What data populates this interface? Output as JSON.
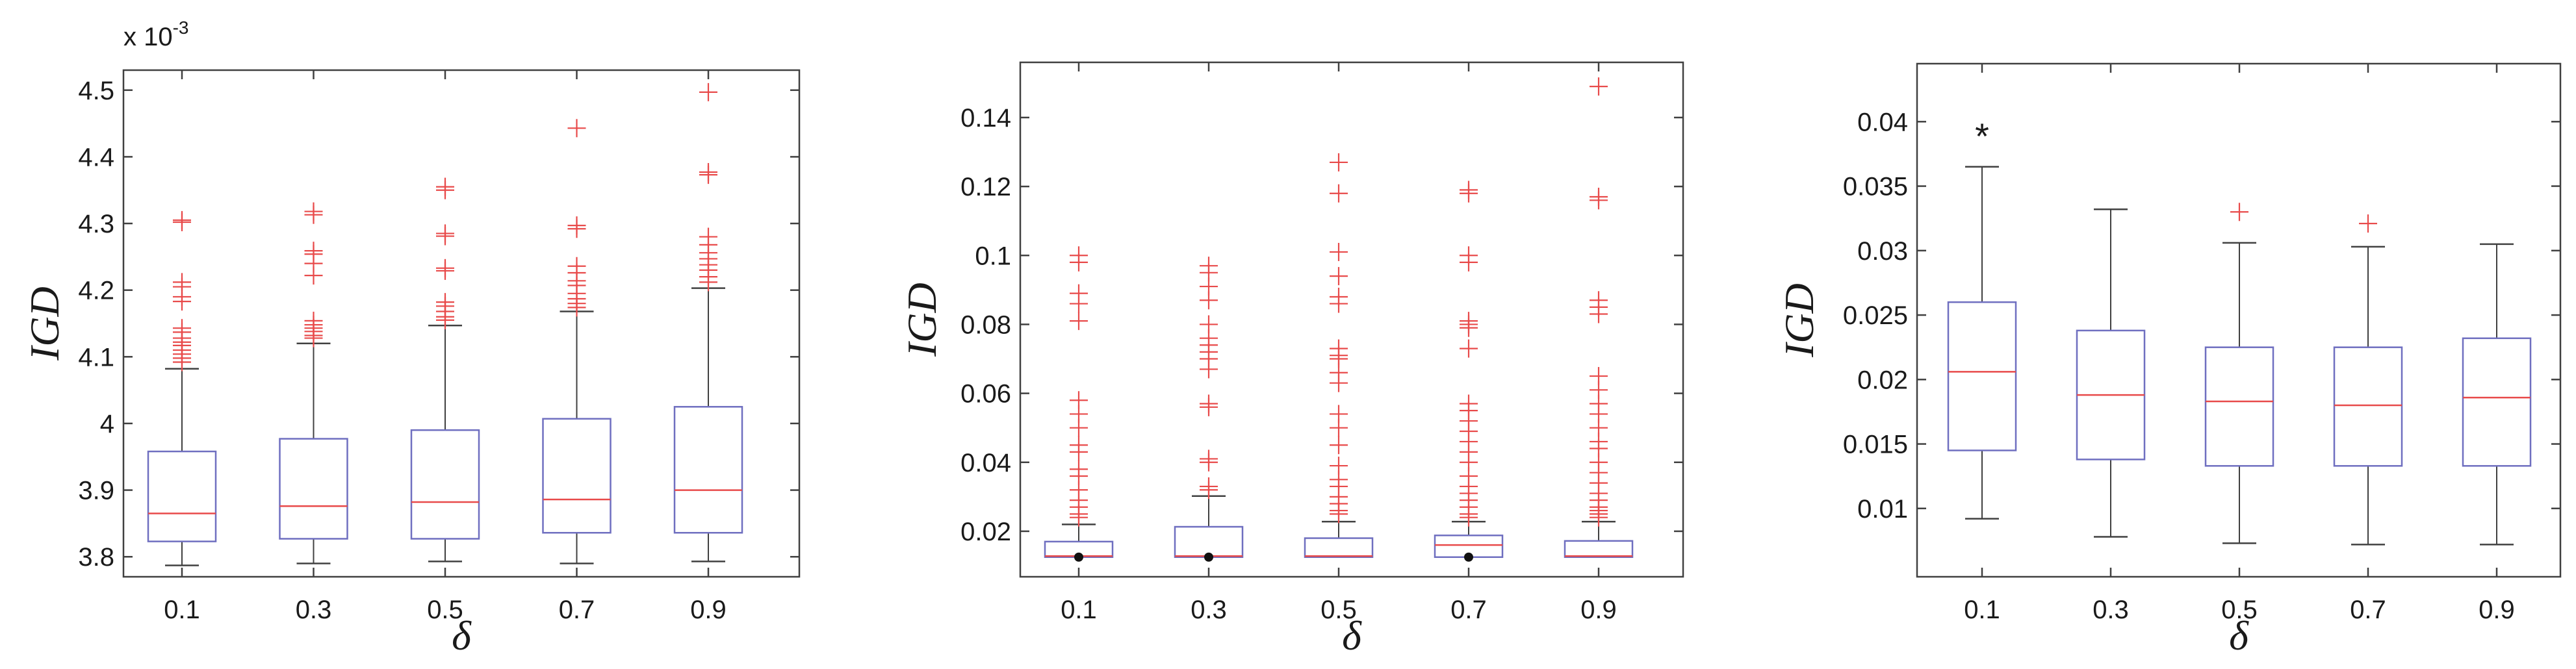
{
  "colors": {
    "box": "#6f6fc0",
    "median": "#e84a4a",
    "whisker": "#404040",
    "outlier": "#e84a4a",
    "dot": "#111111",
    "star": "#1a1a1a"
  },
  "chart_data": [
    {
      "type": "box",
      "xlabel": "δ",
      "ylabel": "IGD",
      "scale_label": "x 10",
      "scale_exponent": "-3",
      "categories": [
        "0.1",
        "0.3",
        "0.5",
        "0.7",
        "0.9"
      ],
      "ylim": [
        3.77,
        4.53
      ],
      "yticks": [
        3.8,
        3.9,
        4.0,
        4.1,
        4.2,
        4.3,
        4.4,
        4.5
      ],
      "ytick_labels": [
        "3.8",
        "3.9",
        "4",
        "4.1",
        "4.2",
        "4.3",
        "4.4",
        "4.5"
      ],
      "boxes": [
        {
          "whisker_low": 3.787,
          "q1": 3.823,
          "median": 3.865,
          "q3": 3.958,
          "whisker_high": 4.082,
          "outliers": [
            4.305,
            4.302,
            4.212,
            4.205,
            4.19,
            4.183,
            4.143,
            4.137,
            4.128,
            4.122,
            4.117,
            4.11,
            4.104,
            4.098,
            4.092
          ]
        },
        {
          "whisker_low": 3.79,
          "q1": 3.827,
          "median": 3.876,
          "q3": 3.977,
          "whisker_high": 4.12,
          "outliers": [
            4.318,
            4.313,
            4.259,
            4.254,
            4.24,
            4.222,
            4.154,
            4.148,
            4.143,
            4.138,
            4.132,
            4.128
          ]
        },
        {
          "whisker_low": 3.793,
          "q1": 3.827,
          "median": 3.882,
          "q3": 3.99,
          "whisker_high": 4.147,
          "outliers": [
            4.355,
            4.35,
            4.285,
            4.281,
            4.233,
            4.229,
            4.182,
            4.176,
            4.168,
            4.16,
            4.155
          ]
        },
        {
          "whisker_low": 3.79,
          "q1": 3.836,
          "median": 3.886,
          "q3": 4.007,
          "whisker_high": 4.168,
          "outliers": [
            4.443,
            4.297,
            4.292,
            4.236,
            4.226,
            4.214,
            4.207,
            4.195,
            4.187,
            4.18,
            4.174
          ]
        },
        {
          "whisker_low": 3.793,
          "q1": 3.836,
          "median": 3.9,
          "q3": 4.025,
          "whisker_high": 4.203,
          "outliers": [
            4.497,
            4.377,
            4.373,
            4.28,
            4.268,
            4.256,
            4.247,
            4.238,
            4.23,
            4.22,
            4.212
          ]
        }
      ]
    },
    {
      "type": "box",
      "xlabel": "δ",
      "ylabel": "IGD",
      "categories": [
        "0.1",
        "0.3",
        "0.5",
        "0.7",
        "0.9"
      ],
      "ylim": [
        0.0068,
        0.156
      ],
      "yticks": [
        0.02,
        0.04,
        0.06,
        0.08,
        0.1,
        0.12,
        0.14
      ],
      "ytick_labels": [
        "0.02",
        "0.04",
        "0.06",
        "0.08",
        "0.1",
        "0.12",
        "0.14"
      ],
      "boxes": [
        {
          "whisker_low": 0.0125,
          "q1": 0.0125,
          "median": 0.0128,
          "q3": 0.017,
          "whisker_high": 0.022,
          "mean": 0.0125,
          "outliers": [
            0.1,
            0.098,
            0.089,
            0.086,
            0.081,
            0.058,
            0.054,
            0.05,
            0.045,
            0.043,
            0.038,
            0.036,
            0.032,
            0.029,
            0.027,
            0.025,
            0.024
          ]
        },
        {
          "whisker_low": 0.0125,
          "q1": 0.0125,
          "median": 0.0128,
          "q3": 0.0213,
          "whisker_high": 0.0302,
          "mean": 0.0125,
          "outliers": [
            0.097,
            0.095,
            0.091,
            0.087,
            0.08,
            0.076,
            0.074,
            0.072,
            0.07,
            0.067,
            0.057,
            0.056,
            0.041,
            0.04,
            0.033,
            0.032
          ]
        },
        {
          "whisker_low": 0.0125,
          "q1": 0.0125,
          "median": 0.0128,
          "q3": 0.018,
          "whisker_high": 0.0228,
          "outliers": [
            0.127,
            0.118,
            0.101,
            0.094,
            0.088,
            0.086,
            0.073,
            0.071,
            0.07,
            0.066,
            0.063,
            0.054,
            0.05,
            0.045,
            0.039,
            0.035,
            0.033,
            0.03,
            0.028,
            0.026,
            0.025
          ]
        },
        {
          "whisker_low": 0.0125,
          "q1": 0.0125,
          "median": 0.016,
          "q3": 0.0188,
          "whisker_high": 0.0228,
          "mean": 0.0125,
          "outliers": [
            0.119,
            0.118,
            0.1,
            0.098,
            0.081,
            0.08,
            0.079,
            0.073,
            0.057,
            0.055,
            0.052,
            0.049,
            0.046,
            0.043,
            0.04,
            0.036,
            0.033,
            0.031,
            0.029,
            0.027,
            0.025,
            0.024
          ]
        },
        {
          "whisker_low": 0.0125,
          "q1": 0.0125,
          "median": 0.0128,
          "q3": 0.0172,
          "whisker_high": 0.0228,
          "outliers": [
            0.149,
            0.117,
            0.116,
            0.087,
            0.085,
            0.083,
            0.065,
            0.061,
            0.057,
            0.054,
            0.05,
            0.046,
            0.044,
            0.04,
            0.037,
            0.034,
            0.031,
            0.029,
            0.027,
            0.026,
            0.025,
            0.024
          ]
        }
      ]
    },
    {
      "type": "box",
      "xlabel": "δ",
      "ylabel": "IGD",
      "categories": [
        "0.1",
        "0.3",
        "0.5",
        "0.7",
        "0.9"
      ],
      "ylim": [
        0.0047,
        0.0445
      ],
      "yticks": [
        0.01,
        0.015,
        0.02,
        0.025,
        0.03,
        0.035,
        0.04
      ],
      "ytick_labels": [
        "0.01",
        "0.015",
        "0.02",
        "0.025",
        "0.03",
        "0.035",
        "0.04"
      ],
      "boxes": [
        {
          "whisker_low": 0.0092,
          "q1": 0.0145,
          "median": 0.0206,
          "q3": 0.026,
          "whisker_high": 0.0365,
          "star": 0.039,
          "outliers": []
        },
        {
          "whisker_low": 0.0078,
          "q1": 0.0138,
          "median": 0.0188,
          "q3": 0.0238,
          "whisker_high": 0.0332,
          "outliers": []
        },
        {
          "whisker_low": 0.0073,
          "q1": 0.0133,
          "median": 0.0183,
          "q3": 0.0225,
          "whisker_high": 0.0306,
          "outliers": [
            0.033
          ]
        },
        {
          "whisker_low": 0.0072,
          "q1": 0.0133,
          "median": 0.018,
          "q3": 0.0225,
          "whisker_high": 0.0303,
          "outliers": [
            0.0321
          ]
        },
        {
          "whisker_low": 0.0072,
          "q1": 0.0133,
          "median": 0.0186,
          "q3": 0.0232,
          "whisker_high": 0.0305,
          "outliers": []
        }
      ]
    }
  ]
}
